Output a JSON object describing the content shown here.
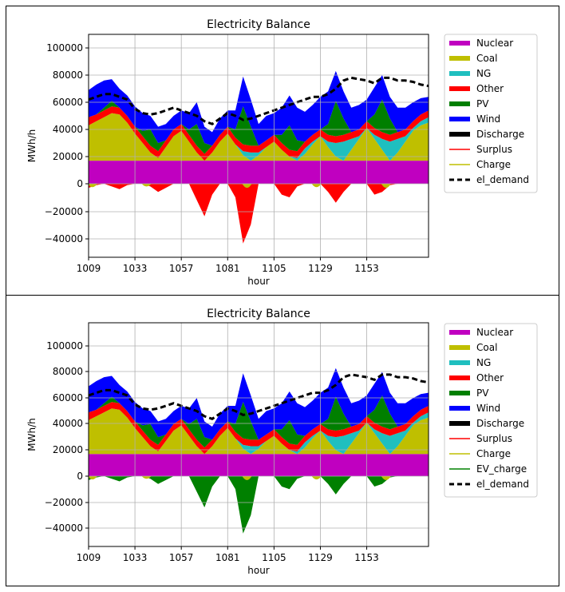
{
  "colors": {
    "Nuclear": "#c000c0",
    "Coal": "#bfbf00",
    "NG": "#1fbfbf",
    "Other": "#ff0000",
    "PV": "#007f00",
    "Wind": "#0000ff",
    "Discharge": "#000000",
    "Surplus": "#ff0000",
    "Charge": "#bfbf00",
    "EV_charge": "#008000",
    "el_demand": "#000000"
  },
  "chart_data": [
    {
      "type": "area",
      "title": "Electricity Balance",
      "xlabel": "hour",
      "ylabel": "MWh/h",
      "xlim": [
        1009,
        1185
      ],
      "ylim": [
        -52000,
        110000
      ],
      "xticks": [
        "1009",
        "1033",
        "1057",
        "1081",
        "1105",
        "1129",
        "1153"
      ],
      "yticks": [
        "−40000",
        "−20000",
        "0",
        "20000",
        "40000",
        "60000",
        "80000",
        "100000"
      ],
      "grid": true,
      "legend_position": "outside-right",
      "legend": [
        "Nuclear",
        "Coal",
        "NG",
        "Other",
        "PV",
        "Wind",
        "Discharge",
        "Surplus",
        "Charge",
        "el_demand"
      ],
      "negative_series": "Surplus"
    },
    {
      "type": "area",
      "title": "Electricity Balance",
      "xlabel": "hour",
      "ylabel": "MWh/h",
      "xlim": [
        1009,
        1185
      ],
      "ylim": [
        -52000,
        110000
      ],
      "xticks": [
        "1009",
        "1033",
        "1057",
        "1081",
        "1105",
        "1129",
        "1153"
      ],
      "yticks": [
        "−40000",
        "−20000",
        "0",
        "20000",
        "40000",
        "60000",
        "80000",
        "100000"
      ],
      "grid": true,
      "legend_position": "outside-right",
      "legend": [
        "Nuclear",
        "Coal",
        "NG",
        "Other",
        "PV",
        "Wind",
        "Discharge",
        "Surplus",
        "Charge",
        "EV_charge",
        "el_demand"
      ],
      "negative_series": "EV_charge"
    }
  ],
  "series_shape": {
    "hours_step": 4,
    "hours": [
      1009,
      1013,
      1017,
      1021,
      1025,
      1029,
      1033,
      1037,
      1041,
      1045,
      1049,
      1053,
      1057,
      1061,
      1065,
      1069,
      1073,
      1077,
      1081,
      1085,
      1089,
      1093,
      1097,
      1101,
      1105,
      1109,
      1113,
      1117,
      1121,
      1125,
      1129,
      1133,
      1137,
      1141,
      1145,
      1149,
      1153,
      1157,
      1161,
      1165,
      1169,
      1173,
      1177,
      1181,
      1185
    ],
    "Nuclear": [
      17000,
      17000,
      17000,
      17000,
      17000,
      17000,
      17000,
      17000,
      17000,
      17000,
      17000,
      17000,
      17000,
      17000,
      17000,
      17000,
      17000,
      17000,
      17000,
      17000,
      17000,
      17000,
      17000,
      17000,
      17000,
      17000,
      17000,
      17000,
      17000,
      17000,
      17000,
      17000,
      17000,
      17000,
      17000,
      17000,
      17000,
      17000,
      17000,
      17000,
      17000,
      17000,
      17000,
      17000,
      17000
    ],
    "Coal": [
      26000,
      29000,
      32000,
      35000,
      34000,
      28000,
      20000,
      13000,
      6000,
      2000,
      10000,
      18000,
      22000,
      14000,
      6000,
      0,
      6000,
      14000,
      20000,
      12000,
      4000,
      0,
      4000,
      10000,
      14000,
      8000,
      3000,
      0,
      5000,
      12000,
      18000,
      10000,
      3000,
      0,
      8000,
      16000,
      24000,
      16000,
      8000,
      0,
      6000,
      14000,
      22000,
      26000,
      28000
    ],
    "NG": [
      0,
      0,
      0,
      0,
      0,
      0,
      0,
      0,
      0,
      0,
      0,
      0,
      0,
      0,
      0,
      0,
      0,
      0,
      0,
      0,
      3000,
      6000,
      2000,
      0,
      0,
      0,
      0,
      2000,
      4000,
      2000,
      0,
      4000,
      10000,
      14000,
      8000,
      2000,
      0,
      3000,
      8000,
      14000,
      10000,
      4000,
      2000,
      3000,
      4000
    ],
    "Other": [
      6000,
      5000,
      5000,
      5000,
      5000,
      5000,
      5000,
      5000,
      5000,
      5000,
      5000,
      5000,
      5000,
      5000,
      5000,
      5000,
      5000,
      5000,
      5000,
      5000,
      5000,
      5000,
      5000,
      5000,
      5000,
      5000,
      5000,
      5000,
      5000,
      5000,
      5000,
      5000,
      5000,
      5000,
      5000,
      5000,
      5000,
      5000,
      5000,
      5000,
      5000,
      5000,
      5000,
      5000,
      5000
    ],
    "PV": [
      0,
      0,
      2000,
      4000,
      0,
      0,
      0,
      4000,
      12000,
      6000,
      0,
      0,
      0,
      4000,
      16000,
      8000,
      0,
      0,
      0,
      6000,
      28000,
      14000,
      0,
      0,
      0,
      6000,
      18000,
      8000,
      0,
      0,
      0,
      8000,
      26000,
      12000,
      0,
      0,
      0,
      10000,
      24000,
      12000,
      0,
      0,
      0,
      0,
      0
    ],
    "Wind": [
      20000,
      22000,
      20000,
      16000,
      14000,
      15000,
      15000,
      13000,
      10000,
      12000,
      12000,
      10000,
      10000,
      12000,
      16000,
      12000,
      10000,
      12000,
      12000,
      14000,
      22000,
      20000,
      16000,
      18000,
      16000,
      20000,
      22000,
      24000,
      22000,
      22000,
      24000,
      24000,
      22000,
      20000,
      18000,
      18000,
      16000,
      20000,
      18000,
      16000,
      18000,
      16000,
      14000,
      12000,
      10000
    ],
    "el_demand": [
      62000,
      64000,
      66000,
      66000,
      64000,
      62000,
      55000,
      52000,
      51000,
      52000,
      54000,
      56000,
      54000,
      52000,
      50000,
      46000,
      44000,
      48000,
      52000,
      50000,
      47000,
      48000,
      50000,
      52000,
      54000,
      56000,
      58000,
      60000,
      62000,
      64000,
      64000,
      66000,
      70000,
      76000,
      78000,
      77000,
      76000,
      74000,
      78000,
      78000,
      76000,
      76000,
      75000,
      73000,
      72000
    ],
    "negative": [
      -3000,
      -1000,
      0,
      -2000,
      -4000,
      -1000,
      0,
      0,
      -2000,
      -6000,
      -3000,
      0,
      0,
      0,
      -12000,
      -24000,
      -8000,
      0,
      0,
      -10000,
      -44000,
      -30000,
      0,
      0,
      0,
      -8000,
      -10000,
      -2000,
      0,
      0,
      0,
      -6000,
      -14000,
      -6000,
      0,
      0,
      0,
      -8000,
      -6000,
      -1000,
      0,
      0,
      0,
      0,
      0
    ]
  }
}
